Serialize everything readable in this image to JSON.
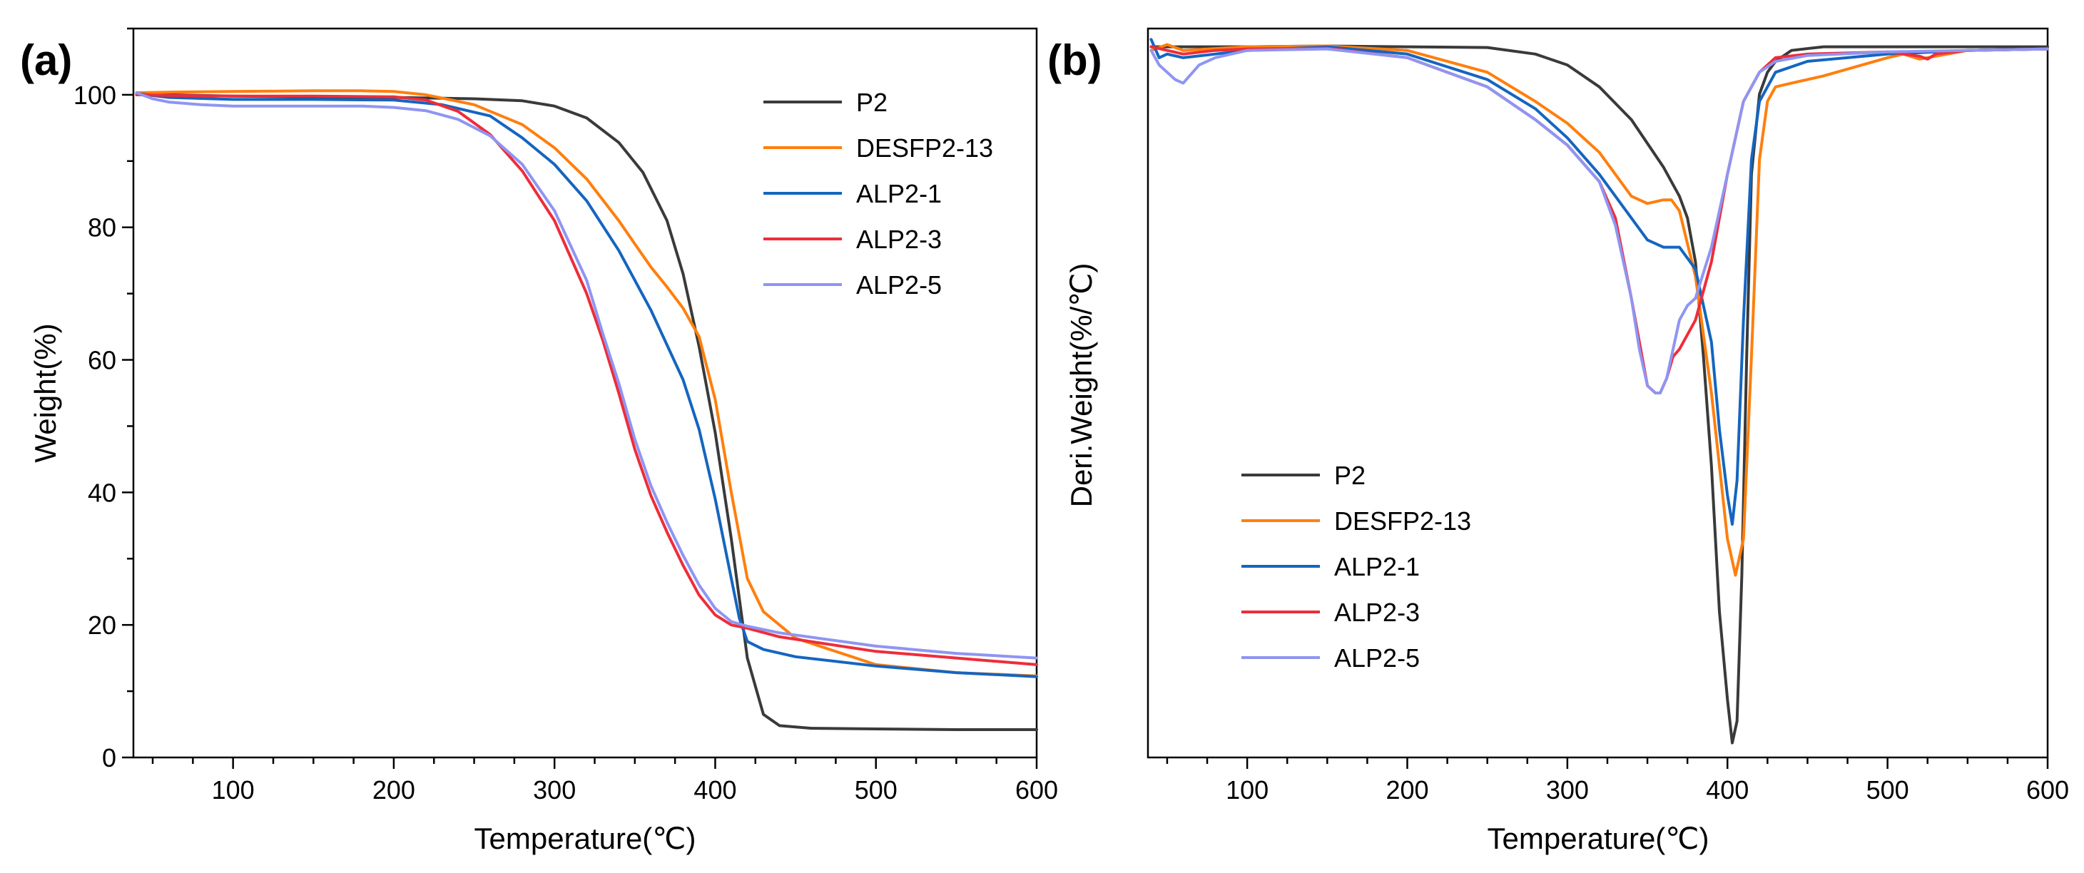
{
  "colors": {
    "P2": "#3a3a3a",
    "DESFP2-13": "#ff7f0e",
    "ALP2-1": "#1565c0",
    "ALP2-3": "#ee2d3a",
    "ALP2-5": "#8f95f2"
  },
  "chart_data": [
    {
      "type": "line",
      "panel_label": "(a)",
      "title": "",
      "xlabel": "Temperature(℃)",
      "ylabel": "Weight(%)",
      "xlim": [
        38,
        600
      ],
      "ylim": [
        0,
        110
      ],
      "xticks": [
        100,
        200,
        300,
        400,
        500,
        600
      ],
      "yticks": [
        0,
        20,
        40,
        60,
        80,
        100
      ],
      "legend_position": "top-right",
      "series": [
        {
          "name": "P2",
          "x": [
            40,
            60,
            100,
            150,
            200,
            250,
            280,
            300,
            320,
            340,
            355,
            370,
            380,
            390,
            400,
            410,
            420,
            430,
            440,
            460,
            500,
            550,
            600
          ],
          "y": [
            100.3,
            100,
            99.8,
            99.7,
            99.6,
            99.4,
            99.1,
            98.3,
            96.5,
            92.8,
            88.3,
            81,
            73,
            62,
            49,
            33,
            15,
            6.5,
            4.8,
            4.4,
            4.3,
            4.2,
            4.2
          ]
        },
        {
          "name": "DESFP2-13",
          "x": [
            40,
            60,
            100,
            150,
            180,
            200,
            220,
            250,
            280,
            300,
            320,
            340,
            350,
            360,
            370,
            380,
            390,
            400,
            410,
            420,
            430,
            450,
            500,
            550,
            600
          ],
          "y": [
            100.3,
            100.4,
            100.5,
            100.6,
            100.6,
            100.5,
            100,
            98.5,
            95.5,
            92,
            87.3,
            81,
            77.5,
            74,
            71,
            67.8,
            63.5,
            54,
            40,
            27,
            22,
            18,
            14,
            12.8,
            12.3
          ]
        },
        {
          "name": "ALP2-1",
          "x": [
            40,
            60,
            100,
            150,
            200,
            230,
            260,
            280,
            300,
            320,
            340,
            360,
            380,
            390,
            400,
            410,
            415,
            420,
            430,
            450,
            500,
            550,
            600
          ],
          "y": [
            100.2,
            99.6,
            99.3,
            99.3,
            99.2,
            98.5,
            96.8,
            93.5,
            89.5,
            84,
            76.5,
            67.5,
            57,
            49.5,
            39,
            27,
            21,
            17.5,
            16.3,
            15.2,
            13.8,
            12.8,
            12.2
          ]
        },
        {
          "name": "ALP2-3",
          "x": [
            40,
            60,
            100,
            150,
            200,
            220,
            240,
            260,
            280,
            300,
            320,
            330,
            340,
            350,
            360,
            370,
            380,
            390,
            400,
            410,
            420,
            440,
            500,
            550,
            600
          ],
          "y": [
            100,
            99.9,
            99.8,
            99.8,
            99.7,
            99.2,
            97.5,
            94,
            88.5,
            81,
            70,
            63,
            55,
            46.5,
            39.5,
            34,
            29,
            24.5,
            21.5,
            20,
            19.5,
            18.2,
            16,
            15,
            14
          ]
        },
        {
          "name": "ALP2-5",
          "x": [
            40,
            50,
            60,
            80,
            100,
            150,
            180,
            200,
            220,
            240,
            260,
            280,
            300,
            320,
            330,
            340,
            350,
            360,
            370,
            380,
            390,
            400,
            410,
            420,
            440,
            500,
            550,
            600
          ],
          "y": [
            100.3,
            99.4,
            98.9,
            98.5,
            98.3,
            98.3,
            98.3,
            98.1,
            97.6,
            96.3,
            93.8,
            89.5,
            82.5,
            72,
            64,
            56.5,
            48,
            41,
            35.5,
            30.5,
            26,
            22.5,
            20.5,
            19.8,
            18.8,
            16.8,
            15.7,
            15
          ]
        }
      ]
    },
    {
      "type": "line",
      "panel_label": "(b)",
      "title": "",
      "xlabel": "Temperature(℃)",
      "ylabel": "Deri.Weight(%/℃)",
      "xlim": [
        38,
        600
      ],
      "ylim": [
        0,
        1
      ],
      "xticks": [
        100,
        200,
        300,
        400,
        500,
        600
      ],
      "yticks": [],
      "y_scale_note": "relative units, no tick labels shown",
      "legend_position": "bottom-left",
      "series": [
        {
          "name": "P2",
          "x": [
            40,
            60,
            100,
            150,
            200,
            250,
            280,
            300,
            320,
            340,
            360,
            370,
            375,
            380,
            385,
            390,
            395,
            400,
            403,
            406,
            409,
            412,
            415,
            420,
            425,
            430,
            440,
            460,
            500,
            550,
            600
          ],
          "y": [
            0.975,
            0.975,
            0.975,
            0.976,
            0.975,
            0.974,
            0.965,
            0.95,
            0.92,
            0.875,
            0.81,
            0.77,
            0.74,
            0.68,
            0.55,
            0.4,
            0.2,
            0.08,
            0.02,
            0.05,
            0.25,
            0.55,
            0.8,
            0.91,
            0.94,
            0.955,
            0.97,
            0.975,
            0.975,
            0.975,
            0.975
          ]
        },
        {
          "name": "DESFP2-13",
          "x": [
            40,
            50,
            60,
            100,
            150,
            200,
            250,
            280,
            300,
            320,
            340,
            350,
            360,
            365,
            370,
            380,
            390,
            400,
            405,
            410,
            415,
            420,
            425,
            430,
            440,
            460,
            500,
            510,
            520,
            550,
            600
          ],
          "y": [
            0.97,
            0.978,
            0.97,
            0.975,
            0.976,
            0.97,
            0.94,
            0.9,
            0.87,
            0.83,
            0.77,
            0.76,
            0.765,
            0.765,
            0.75,
            0.66,
            0.5,
            0.3,
            0.25,
            0.3,
            0.55,
            0.82,
            0.9,
            0.92,
            0.925,
            0.935,
            0.96,
            0.965,
            0.958,
            0.97,
            0.972
          ]
        },
        {
          "name": "ALP2-1",
          "x": [
            40,
            45,
            50,
            60,
            80,
            100,
            150,
            200,
            250,
            280,
            300,
            320,
            340,
            350,
            360,
            370,
            380,
            390,
            395,
            400,
            403,
            406,
            410,
            415,
            420,
            430,
            450,
            500,
            550,
            600
          ],
          "y": [
            0.985,
            0.96,
            0.965,
            0.96,
            0.965,
            0.97,
            0.975,
            0.965,
            0.93,
            0.89,
            0.85,
            0.8,
            0.74,
            0.71,
            0.7,
            0.7,
            0.67,
            0.57,
            0.45,
            0.36,
            0.32,
            0.38,
            0.6,
            0.82,
            0.9,
            0.94,
            0.955,
            0.965,
            0.97,
            0.972
          ]
        },
        {
          "name": "ALP2-3",
          "x": [
            40,
            50,
            60,
            80,
            100,
            150,
            200,
            250,
            280,
            300,
            320,
            330,
            340,
            345,
            350,
            355,
            358,
            362,
            366,
            370,
            380,
            390,
            400,
            410,
            420,
            430,
            450,
            500,
            520,
            525,
            530,
            550,
            600
          ],
          "y": [
            0.975,
            0.97,
            0.965,
            0.97,
            0.972,
            0.973,
            0.96,
            0.92,
            0.875,
            0.84,
            0.79,
            0.74,
            0.63,
            0.57,
            0.51,
            0.5,
            0.5,
            0.52,
            0.55,
            0.56,
            0.6,
            0.68,
            0.8,
            0.9,
            0.94,
            0.96,
            0.965,
            0.968,
            0.962,
            0.958,
            0.965,
            0.97,
            0.972
          ]
        },
        {
          "name": "ALP2-5",
          "x": [
            40,
            45,
            50,
            55,
            60,
            70,
            80,
            100,
            150,
            200,
            250,
            280,
            300,
            320,
            330,
            340,
            345,
            350,
            355,
            358,
            362,
            366,
            370,
            375,
            380,
            390,
            400,
            410,
            420,
            430,
            450,
            500,
            550,
            600
          ],
          "y": [
            0.97,
            0.95,
            0.94,
            0.93,
            0.925,
            0.95,
            0.96,
            0.97,
            0.972,
            0.96,
            0.92,
            0.875,
            0.84,
            0.79,
            0.73,
            0.63,
            0.56,
            0.51,
            0.5,
            0.5,
            0.52,
            0.56,
            0.6,
            0.62,
            0.63,
            0.7,
            0.8,
            0.9,
            0.94,
            0.955,
            0.963,
            0.968,
            0.97,
            0.972
          ]
        }
      ]
    }
  ]
}
